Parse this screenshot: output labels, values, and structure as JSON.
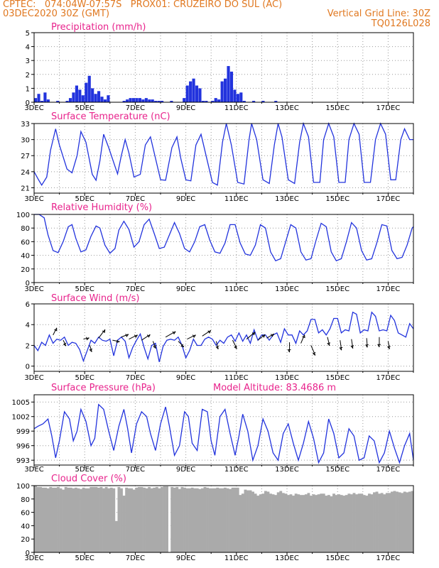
{
  "header": {
    "line1_left": "CPTEC:   074:04W-07:57S   PROX01: CRUZEIRO DO SUL (AC)",
    "line2_left": "03DEC2020 30Z (GMT)",
    "line2_right": "Vertical Grid Line: 30Z",
    "line3_right": "TQ0126L028"
  },
  "colors": {
    "header": "#e07820",
    "title": "#e8238c",
    "line": "#2233dd",
    "cloud": "#aaaaaa"
  },
  "chart_data": [
    {
      "type": "bar",
      "title": "Precipitation (mm/h)",
      "ylim": [
        0,
        5
      ],
      "yticks": [
        "0",
        "1",
        "2",
        "3",
        "4",
        "5"
      ],
      "xticks": [
        "3DEC",
        "5DEC",
        "7DEC",
        "9DEC",
        "11DEC",
        "13DEC",
        "15DEC",
        "17DEC"
      ],
      "x_day_range": [
        0,
        15
      ],
      "values": [
        0.3,
        0.6,
        0.1,
        0.7,
        0.2,
        0.0,
        0.0,
        0.1,
        0.0,
        0.0,
        0.1,
        0.3,
        0.7,
        1.2,
        0.9,
        0.5,
        1.4,
        1.9,
        1.0,
        0.6,
        0.8,
        0.4,
        0.2,
        0.5,
        0.0,
        0.0,
        0.0,
        0.0,
        0.1,
        0.2,
        0.3,
        0.3,
        0.3,
        0.3,
        0.2,
        0.3,
        0.2,
        0.2,
        0.1,
        0.1,
        0.1,
        0.0,
        0.0,
        0.1,
        0.0,
        0.0,
        0.0,
        0.3,
        1.2,
        1.5,
        1.7,
        1.2,
        1.0,
        0.1,
        0.1,
        0.0,
        0.1,
        0.3,
        0.2,
        1.5,
        1.7,
        2.6,
        2.2,
        0.9,
        0.6,
        0.7,
        0.1,
        0.0,
        0.0,
        0.1,
        0.0,
        0.0,
        0.1,
        0.0,
        0.0,
        0.0,
        0.1,
        0.0,
        0.0,
        0.0,
        0.0,
        0.0,
        0.0,
        0.0,
        0.0,
        0.0,
        0.0,
        0.0,
        0.0,
        0.0,
        0.0,
        0.0,
        0.0,
        0.0,
        0.0,
        0.0,
        0.0,
        0.0,
        0.0,
        0.0,
        0.0,
        0.0,
        0.0,
        0.0,
        0.0,
        0.0,
        0.0,
        0.0,
        0.0,
        0.0,
        0.0,
        0.0,
        0.0,
        0.0,
        0.0,
        0.0,
        0.0,
        0.0,
        0.0,
        0.0
      ]
    },
    {
      "type": "line",
      "title": "Surface Temperature (nC)",
      "ylim": [
        20,
        33
      ],
      "yticks": [
        "21",
        "24",
        "27",
        "30",
        "33"
      ],
      "ytick_values": [
        21,
        24,
        27,
        30,
        33
      ],
      "xticks": [
        "3DEC",
        "5DEC",
        "7DEC",
        "9DEC",
        "11DEC",
        "13DEC",
        "15DEC",
        "17DEC"
      ],
      "x_day_range": [
        0,
        15
      ],
      "x": [
        0,
        0.15,
        0.3,
        0.5,
        0.65,
        0.85,
        1.0,
        1.3,
        1.5,
        1.7,
        1.85,
        2.05,
        2.3,
        2.45,
        2.6,
        2.75,
        2.95,
        3.2,
        3.3,
        3.45,
        3.6,
        3.75,
        3.95,
        4.2,
        4.4,
        4.6,
        4.8,
        5.0,
        5.2,
        5.45,
        5.65,
        5.8,
        6.0,
        6.2,
        6.4,
        6.6,
        6.8,
        7.05,
        7.25,
        7.45,
        7.6,
        7.8,
        8.05,
        8.3,
        8.5,
        8.6,
        8.8,
        9.05,
        9.3,
        9.5,
        9.65,
        9.8,
        10.05,
        10.3,
        10.5,
        10.65,
        10.85,
        11.05,
        11.3,
        11.45,
        11.65,
        11.85,
        12.05,
        12.3,
        12.45,
        12.65,
        12.85,
        13.05,
        13.3,
        13.5,
        13.7,
        13.9,
        14.1,
        14.3,
        14.5,
        14.65,
        14.85,
        15.0
      ],
      "values": [
        24.0,
        22.7,
        21.5,
        23.0,
        28.0,
        32.0,
        29.0,
        24.5,
        23.8,
        27.0,
        31.5,
        29.5,
        23.5,
        22.4,
        26.0,
        31.0,
        28.5,
        25.0,
        23.6,
        27.0,
        30.0,
        27.5,
        23.0,
        23.5,
        29.0,
        30.5,
        26.5,
        22.5,
        22.4,
        28.5,
        30.5,
        26.5,
        22.5,
        22.3,
        29.0,
        31.0,
        27.0,
        22.0,
        21.5,
        29.5,
        33.0,
        29.0,
        22.0,
        21.7,
        30.0,
        33.0,
        30.0,
        22.5,
        21.8,
        29.0,
        33.0,
        30.5,
        22.5,
        21.8,
        29.5,
        33.0,
        30.5,
        22.0,
        22.0,
        30.0,
        33.0,
        30.5,
        22.0,
        22.0,
        30.0,
        33.0,
        31.0,
        22.0,
        22.0,
        30.0,
        33.0,
        31.0,
        22.5,
        22.5,
        30.0,
        32.0,
        30.0,
        30.0
      ]
    },
    {
      "type": "line",
      "title": "Relative Humidity (%)",
      "ylim": [
        0,
        100
      ],
      "yticks": [
        "0",
        "20",
        "40",
        "60",
        "80",
        "100"
      ],
      "ytick_values": [
        0,
        20,
        40,
        60,
        80,
        100
      ],
      "xticks": [
        "3DEC",
        "5DEC",
        "7DEC",
        "9DEC",
        "11DEC",
        "13DEC",
        "15DEC",
        "17DEC"
      ],
      "x_day_range": [
        0,
        15
      ],
      "x": [
        0,
        0.2,
        0.4,
        0.55,
        0.75,
        0.95,
        1.15,
        1.35,
        1.5,
        1.65,
        1.85,
        2.05,
        2.25,
        2.45,
        2.6,
        2.8,
        3.0,
        3.2,
        3.35,
        3.55,
        3.75,
        3.95,
        4.15,
        4.35,
        4.55,
        4.75,
        4.95,
        5.15,
        5.35,
        5.55,
        5.75,
        5.95,
        6.15,
        6.35,
        6.55,
        6.75,
        6.95,
        7.15,
        7.35,
        7.55,
        7.75,
        7.95,
        8.15,
        8.35,
        8.55,
        8.75,
        8.95,
        9.15,
        9.35,
        9.55,
        9.75,
        9.95,
        10.15,
        10.35,
        10.55,
        10.75,
        10.95,
        11.15,
        11.35,
        11.55,
        11.75,
        11.95,
        12.15,
        12.35,
        12.55,
        12.75,
        12.95,
        13.15,
        13.35,
        13.55,
        13.75,
        13.95,
        14.15,
        14.35,
        14.55,
        14.75,
        14.95,
        15.0
      ],
      "values": [
        100,
        100,
        95,
        70,
        47,
        44,
        60,
        82,
        85,
        65,
        45,
        48,
        68,
        83,
        80,
        55,
        43,
        50,
        77,
        90,
        78,
        52,
        60,
        85,
        93,
        72,
        50,
        52,
        70,
        88,
        72,
        50,
        45,
        60,
        82,
        85,
        62,
        45,
        43,
        58,
        85,
        85,
        58,
        42,
        40,
        55,
        85,
        80,
        45,
        32,
        35,
        60,
        85,
        80,
        45,
        33,
        35,
        62,
        87,
        82,
        45,
        32,
        35,
        60,
        88,
        80,
        47,
        33,
        35,
        58,
        85,
        83,
        47,
        35,
        37,
        55,
        80,
        82
      ]
    },
    {
      "type": "line",
      "title": "Surface Wind (m/s)",
      "ylim": [
        -0.5,
        6
      ],
      "yticks": [
        "0",
        "2",
        "4",
        "6"
      ],
      "ytick_values": [
        0,
        2,
        4,
        6
      ],
      "xticks": [
        "3DEC",
        "5DEC",
        "7DEC",
        "9DEC",
        "11DEC",
        "13DEC",
        "15DEC",
        "17DEC"
      ],
      "x_day_range": [
        0,
        15
      ],
      "x": [
        0,
        0.15,
        0.3,
        0.45,
        0.6,
        0.75,
        0.9,
        1.05,
        1.2,
        1.35,
        1.5,
        1.65,
        1.8,
        1.95,
        2.1,
        2.25,
        2.4,
        2.55,
        2.7,
        2.85,
        3.0,
        3.15,
        3.3,
        3.45,
        3.6,
        3.75,
        3.9,
        4.05,
        4.2,
        4.35,
        4.5,
        4.65,
        4.8,
        4.95,
        5.1,
        5.25,
        5.4,
        5.55,
        5.7,
        5.85,
        6.0,
        6.15,
        6.3,
        6.45,
        6.6,
        6.75,
        6.9,
        7.05,
        7.2,
        7.35,
        7.5,
        7.65,
        7.8,
        7.95,
        8.1,
        8.25,
        8.4,
        8.55,
        8.7,
        8.85,
        9.0,
        9.15,
        9.3,
        9.45,
        9.6,
        9.75,
        9.9,
        10.05,
        10.2,
        10.35,
        10.5,
        10.65,
        10.8,
        10.95,
        11.1,
        11.25,
        11.4,
        11.55,
        11.7,
        11.85,
        12.0,
        12.15,
        12.3,
        12.45,
        12.6,
        12.75,
        12.9,
        13.05,
        13.2,
        13.35,
        13.5,
        13.65,
        13.8,
        13.95,
        14.1,
        14.25,
        14.4,
        14.55,
        14.7,
        14.85,
        15.0
      ],
      "values": [
        2.0,
        1.5,
        2.3,
        2.0,
        3.0,
        2.2,
        2.6,
        2.5,
        2.8,
        2.0,
        2.3,
        2.2,
        1.6,
        0.5,
        1.5,
        2.5,
        2.2,
        2.8,
        2.5,
        2.4,
        2.6,
        1.0,
        2.5,
        2.8,
        2.4,
        0.8,
        1.8,
        2.5,
        3.1,
        1.8,
        0.7,
        2.0,
        2.2,
        0.4,
        1.9,
        2.5,
        2.6,
        2.5,
        2.8,
        2.0,
        0.8,
        1.5,
        2.6,
        2.0,
        2.0,
        2.6,
        2.8,
        2.6,
        2.0,
        2.5,
        2.2,
        2.8,
        3.0,
        2.4,
        3.2,
        2.4,
        3.0,
        2.2,
        3.5,
        2.5,
        3.0,
        3.0,
        2.5,
        3.0,
        3.2,
        2.3,
        3.6,
        3.0,
        3.0,
        2.2,
        3.4,
        3.0,
        3.4,
        4.5,
        4.5,
        3.2,
        3.5,
        3.0,
        3.6,
        4.6,
        4.6,
        3.2,
        3.5,
        3.4,
        5.2,
        5.0,
        3.2,
        3.5,
        3.4,
        5.2,
        4.8,
        3.4,
        3.5,
        3.4,
        4.9,
        4.4,
        3.2,
        3.0,
        2.8,
        4.1,
        3.6
      ]
    },
    {
      "type": "line",
      "title": "Surface Pressure (hPa)",
      "annotation": "Model Altitude: 83.4686 m",
      "ylim": [
        992,
        1006.5
      ],
      "yticks": [
        "993",
        "996",
        "999",
        "1002",
        "1005"
      ],
      "ytick_values": [
        993,
        996,
        999,
        1002,
        1005
      ],
      "xticks": [
        "3DEC",
        "5DEC",
        "7DEC",
        "9DEC",
        "11DEC",
        "13DEC",
        "15DEC",
        "17DEC"
      ],
      "x_day_range": [
        0,
        15
      ],
      "x": [
        0,
        0.15,
        0.35,
        0.55,
        0.7,
        0.85,
        1.0,
        1.2,
        1.4,
        1.55,
        1.7,
        1.85,
        2.05,
        2.25,
        2.4,
        2.55,
        2.75,
        2.95,
        3.15,
        3.35,
        3.55,
        3.7,
        3.85,
        4.05,
        4.25,
        4.45,
        4.6,
        4.8,
        5.0,
        5.2,
        5.35,
        5.55,
        5.75,
        5.95,
        6.1,
        6.25,
        6.45,
        6.65,
        6.85,
        7.0,
        7.15,
        7.35,
        7.55,
        7.75,
        7.95,
        8.1,
        8.25,
        8.45,
        8.65,
        8.85,
        9.05,
        9.25,
        9.45,
        9.65,
        9.85,
        10.05,
        10.25,
        10.45,
        10.65,
        10.85,
        11.05,
        11.25,
        11.45,
        11.65,
        11.85,
        12.05,
        12.25,
        12.45,
        12.65,
        12.85,
        13.05,
        13.25,
        13.45,
        13.65,
        13.85,
        14.05,
        14.25,
        14.45,
        14.65,
        14.85,
        15.0
      ],
      "values": [
        999.5,
        1000.0,
        1000.5,
        1001.5,
        998.0,
        993.5,
        997.0,
        1003.0,
        1001.5,
        997.0,
        999.0,
        1003.5,
        1001.0,
        996.0,
        997.5,
        1004.5,
        1003.5,
        999.0,
        995.0,
        1000.0,
        1003.5,
        999.5,
        994.5,
        1000.5,
        1003.0,
        1002.0,
        998.5,
        995.0,
        1000.5,
        1004.0,
        1000.0,
        994.0,
        996.0,
        1003.0,
        1002.0,
        996.5,
        995.0,
        1003.5,
        1003.0,
        997.0,
        994.0,
        1002.0,
        1003.5,
        998.5,
        994.0,
        998.0,
        1002.5,
        999.0,
        993.0,
        996.0,
        1001.5,
        999.0,
        994.5,
        993.0,
        998.5,
        1000.5,
        996.5,
        993.0,
        996.5,
        1001.0,
        997.5,
        992.5,
        994.5,
        1001.5,
        998.5,
        993.5,
        994.5,
        999.5,
        998.0,
        993.0,
        993.5,
        998.0,
        997.0,
        992.5,
        994.5,
        999.0,
        995.5,
        992.5,
        996.0,
        998.5,
        993.0
      ]
    },
    {
      "type": "bar",
      "title": "Cloud Cover (%)",
      "ylim": [
        0,
        100
      ],
      "yticks": [
        "0",
        "20",
        "40",
        "60",
        "80",
        "100"
      ],
      "xticks": [
        "3DEC",
        "5DEC",
        "7DEC",
        "9DEC",
        "11DEC",
        "13DEC",
        "15DEC",
        "17DEC"
      ],
      "x_day_range": [
        0,
        15
      ],
      "values": [
        100,
        98,
        98,
        97,
        97,
        96,
        98,
        97,
        97,
        98,
        96,
        94,
        98,
        97,
        97,
        96,
        97,
        96,
        95,
        97,
        96,
        96,
        98,
        98,
        98,
        97,
        98,
        96,
        98,
        96,
        97,
        96,
        47,
        98,
        96,
        85,
        97,
        96,
        96,
        94,
        97,
        98,
        98,
        97,
        96,
        98,
        96,
        97,
        98,
        96,
        98,
        99,
        99,
        0,
        98,
        97,
        98,
        95,
        98,
        97,
        96,
        96,
        97,
        96,
        96,
        95,
        96,
        98,
        97,
        96,
        96,
        96,
        97,
        96,
        96,
        97,
        96,
        95,
        97,
        97,
        97,
        86,
        88,
        94,
        93,
        93,
        91,
        88,
        85,
        87,
        88,
        92,
        91,
        88,
        87,
        86,
        90,
        92,
        89,
        88,
        86,
        87,
        85,
        88,
        87,
        86,
        86,
        87,
        89,
        85,
        87,
        86,
        87,
        88,
        88,
        85,
        86,
        84,
        88,
        86,
        87,
        86,
        85,
        86,
        88,
        87,
        89,
        87,
        88,
        88,
        86,
        85,
        88,
        87,
        90,
        91,
        88,
        89,
        87,
        89,
        89,
        91,
        92,
        91,
        90,
        89,
        91,
        90,
        91,
        92
      ]
    }
  ],
  "wind_arrows": [
    {
      "day": 0.75,
      "speed": 3.0,
      "dx": 5,
      "dy": -10
    },
    {
      "day": 1.15,
      "speed": 2.5,
      "dx": 4,
      "dy": 8
    },
    {
      "day": 1.95,
      "speed": 2.6,
      "dx": 8,
      "dy": -2
    },
    {
      "day": 2.2,
      "speed": 2.0,
      "dx": 3,
      "dy": 9
    },
    {
      "day": 2.55,
      "speed": 2.7,
      "dx": 9,
      "dy": -12
    },
    {
      "day": 3.1,
      "speed": 2.5,
      "dx": 10,
      "dy": 2
    },
    {
      "day": 3.45,
      "speed": 2.8,
      "dx": 10,
      "dy": -4
    },
    {
      "day": 3.75,
      "speed": 2.6,
      "dx": 12,
      "dy": -6
    },
    {
      "day": 4.25,
      "speed": 2.5,
      "dx": 12,
      "dy": -8
    },
    {
      "day": 4.7,
      "speed": 2.4,
      "dx": 4,
      "dy": 10
    },
    {
      "day": 5.2,
      "speed": 2.8,
      "dx": 14,
      "dy": -8
    },
    {
      "day": 5.7,
      "speed": 2.4,
      "dx": 8,
      "dy": 8
    },
    {
      "day": 6.05,
      "speed": 2.6,
      "dx": 12,
      "dy": -6
    },
    {
      "day": 6.65,
      "speed": 2.9,
      "dx": 12,
      "dy": -8
    },
    {
      "day": 7.2,
      "speed": 2.4,
      "dx": 3,
      "dy": 11
    },
    {
      "day": 7.85,
      "speed": 2.5,
      "dx": 6,
      "dy": 12
    },
    {
      "day": 8.4,
      "speed": 2.6,
      "dx": 12,
      "dy": -10
    },
    {
      "day": 8.85,
      "speed": 2.5,
      "dx": 10,
      "dy": -8
    },
    {
      "day": 9.2,
      "speed": 2.7,
      "dx": 10,
      "dy": -6
    },
    {
      "day": 10.1,
      "speed": 2.3,
      "dx": 0,
      "dy": 14
    },
    {
      "day": 10.55,
      "speed": 2.2,
      "dx": 5,
      "dy": -12
    },
    {
      "day": 10.95,
      "speed": 2.0,
      "dx": 6,
      "dy": 14
    },
    {
      "day": 11.6,
      "speed": 2.8,
      "dx": 3,
      "dy": 12
    },
    {
      "day": 12.1,
      "speed": 2.5,
      "dx": 2,
      "dy": 14
    },
    {
      "day": 12.55,
      "speed": 2.6,
      "dx": 2,
      "dy": 13
    },
    {
      "day": 13.15,
      "speed": 2.7,
      "dx": 1,
      "dy": 13
    },
    {
      "day": 13.65,
      "speed": 2.8,
      "dx": 0,
      "dy": 14
    },
    {
      "day": 14.0,
      "speed": 2.4,
      "dx": 2,
      "dy": 11
    }
  ]
}
